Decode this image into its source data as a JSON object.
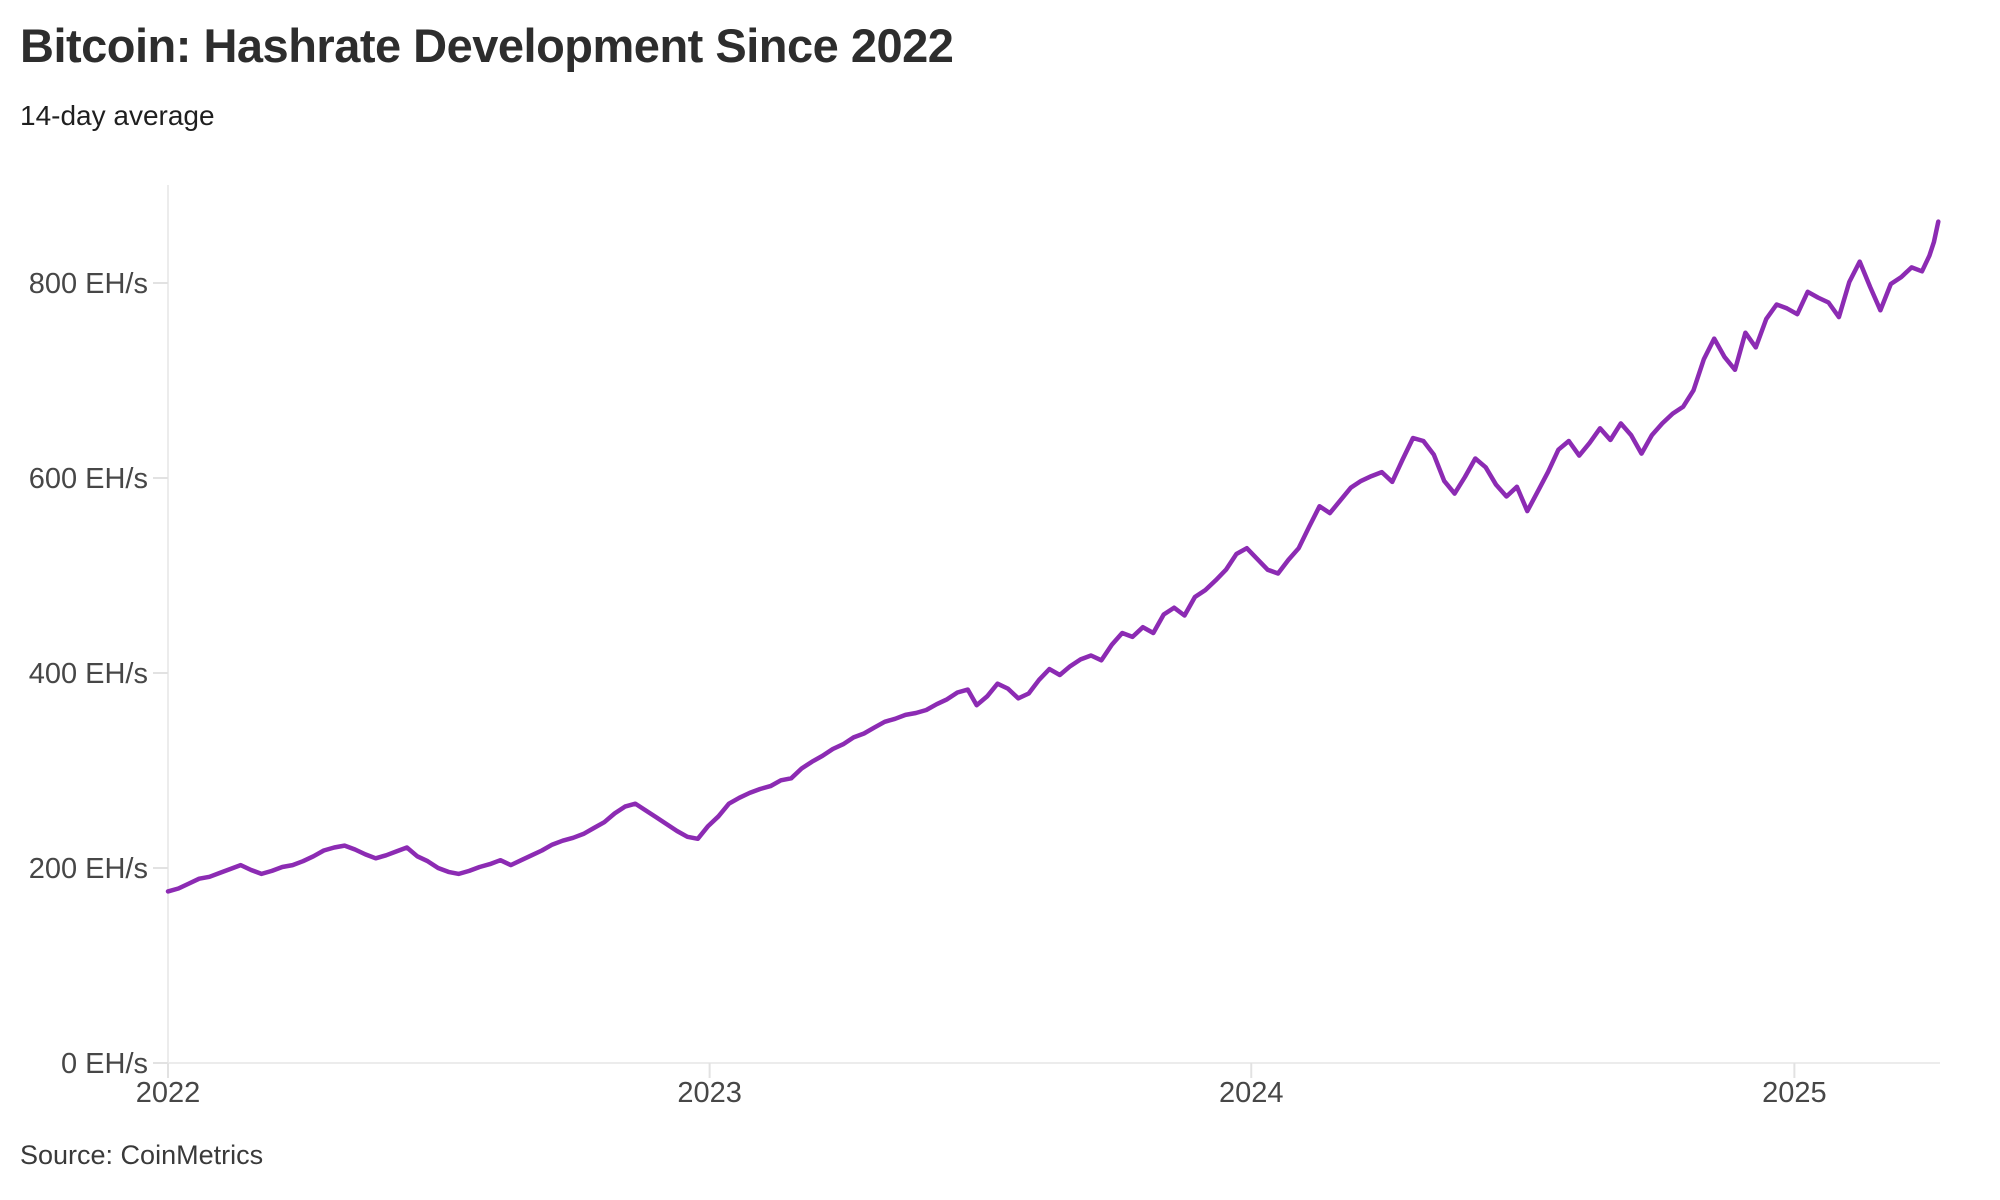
{
  "header": {
    "title": "Bitcoin: Hashrate Development Since 2022",
    "subtitle": "14-day average"
  },
  "footer": {
    "source": "Source: CoinMetrics"
  },
  "chart_data": {
    "type": "line",
    "title": "Bitcoin: Hashrate Development Since 2022",
    "subtitle": "14-day average",
    "source": "Source: CoinMetrics",
    "unit": "EH/s",
    "grid": false,
    "legend": "none",
    "line_color": "#8c2bb3",
    "axis_color": "#ececec",
    "tick_color": "#e2e2e2",
    "label_color": "#474747",
    "ylim": [
      0,
      900
    ],
    "xlim": [
      "2022-01-01",
      "2025-04-20"
    ],
    "y_ticks": [
      {
        "value": 0,
        "label": "0 EH/s"
      },
      {
        "value": 200,
        "label": "200 EH/s"
      },
      {
        "value": 400,
        "label": "400 EH/s"
      },
      {
        "value": 600,
        "label": "600 EH/s"
      },
      {
        "value": 800,
        "label": "800 EH/s"
      }
    ],
    "x_ticks": [
      {
        "date": "2022-01-01",
        "label": "2022"
      },
      {
        "date": "2023-01-01",
        "label": "2023"
      },
      {
        "date": "2024-01-01",
        "label": "2024"
      },
      {
        "date": "2025-01-01",
        "label": "2025"
      }
    ],
    "series": [
      {
        "name": "Bitcoin network hashrate, 14-day average (EH/s)",
        "color": "#8c2bb3",
        "points": [
          [
            "2022-01-01",
            176
          ],
          [
            "2022-01-08",
            179
          ],
          [
            "2022-01-15",
            184
          ],
          [
            "2022-01-22",
            189
          ],
          [
            "2022-01-29",
            191
          ],
          [
            "2022-02-05",
            195
          ],
          [
            "2022-02-12",
            199
          ],
          [
            "2022-02-19",
            203
          ],
          [
            "2022-02-26",
            198
          ],
          [
            "2022-03-05",
            194
          ],
          [
            "2022-03-12",
            197
          ],
          [
            "2022-03-19",
            201
          ],
          [
            "2022-03-26",
            203
          ],
          [
            "2022-04-02",
            207
          ],
          [
            "2022-04-09",
            212
          ],
          [
            "2022-04-16",
            218
          ],
          [
            "2022-04-23",
            221
          ],
          [
            "2022-04-30",
            223
          ],
          [
            "2022-05-07",
            219
          ],
          [
            "2022-05-14",
            214
          ],
          [
            "2022-05-21",
            210
          ],
          [
            "2022-05-28",
            213
          ],
          [
            "2022-06-04",
            217
          ],
          [
            "2022-06-11",
            221
          ],
          [
            "2022-06-18",
            212
          ],
          [
            "2022-06-25",
            207
          ],
          [
            "2022-07-02",
            200
          ],
          [
            "2022-07-09",
            196
          ],
          [
            "2022-07-16",
            194
          ],
          [
            "2022-07-23",
            197
          ],
          [
            "2022-07-30",
            201
          ],
          [
            "2022-08-06",
            204
          ],
          [
            "2022-08-13",
            208
          ],
          [
            "2022-08-20",
            203
          ],
          [
            "2022-08-27",
            208
          ],
          [
            "2022-09-03",
            213
          ],
          [
            "2022-09-10",
            218
          ],
          [
            "2022-09-17",
            224
          ],
          [
            "2022-09-24",
            228
          ],
          [
            "2022-10-01",
            231
          ],
          [
            "2022-10-08",
            235
          ],
          [
            "2022-10-15",
            241
          ],
          [
            "2022-10-22",
            247
          ],
          [
            "2022-10-29",
            256
          ],
          [
            "2022-11-05",
            263
          ],
          [
            "2022-11-12",
            266
          ],
          [
            "2022-11-19",
            259
          ],
          [
            "2022-11-26",
            252
          ],
          [
            "2022-12-03",
            245
          ],
          [
            "2022-12-10",
            238
          ],
          [
            "2022-12-17",
            232
          ],
          [
            "2022-12-24",
            230
          ],
          [
            "2022-12-31",
            243
          ],
          [
            "2023-01-07",
            253
          ],
          [
            "2023-01-14",
            266
          ],
          [
            "2023-01-21",
            272
          ],
          [
            "2023-01-28",
            277
          ],
          [
            "2023-02-04",
            281
          ],
          [
            "2023-02-11",
            284
          ],
          [
            "2023-02-18",
            290
          ],
          [
            "2023-02-25",
            292
          ],
          [
            "2023-03-04",
            302
          ],
          [
            "2023-03-11",
            309
          ],
          [
            "2023-03-18",
            315
          ],
          [
            "2023-03-25",
            322
          ],
          [
            "2023-04-01",
            327
          ],
          [
            "2023-04-08",
            334
          ],
          [
            "2023-04-15",
            338
          ],
          [
            "2023-04-22",
            344
          ],
          [
            "2023-04-29",
            350
          ],
          [
            "2023-05-06",
            353
          ],
          [
            "2023-05-13",
            357
          ],
          [
            "2023-05-20",
            359
          ],
          [
            "2023-05-27",
            362
          ],
          [
            "2023-06-03",
            368
          ],
          [
            "2023-06-10",
            373
          ],
          [
            "2023-06-17",
            380
          ],
          [
            "2023-06-24",
            383
          ],
          [
            "2023-06-30",
            367
          ],
          [
            "2023-07-07",
            376
          ],
          [
            "2023-07-14",
            389
          ],
          [
            "2023-07-21",
            384
          ],
          [
            "2023-07-28",
            374
          ],
          [
            "2023-08-04",
            379
          ],
          [
            "2023-08-11",
            393
          ],
          [
            "2023-08-18",
            404
          ],
          [
            "2023-08-25",
            398
          ],
          [
            "2023-09-01",
            407
          ],
          [
            "2023-09-08",
            414
          ],
          [
            "2023-09-15",
            418
          ],
          [
            "2023-09-22",
            413
          ],
          [
            "2023-09-29",
            429
          ],
          [
            "2023-10-06",
            441
          ],
          [
            "2023-10-13",
            437
          ],
          [
            "2023-10-20",
            447
          ],
          [
            "2023-10-27",
            441
          ],
          [
            "2023-11-03",
            460
          ],
          [
            "2023-11-10",
            467
          ],
          [
            "2023-11-17",
            459
          ],
          [
            "2023-11-24",
            478
          ],
          [
            "2023-12-01",
            485
          ],
          [
            "2023-12-08",
            495
          ],
          [
            "2023-12-15",
            506
          ],
          [
            "2023-12-22",
            522
          ],
          [
            "2023-12-29",
            528
          ],
          [
            "2024-01-05",
            517
          ],
          [
            "2024-01-12",
            506
          ],
          [
            "2024-01-19",
            502
          ],
          [
            "2024-01-26",
            516
          ],
          [
            "2024-02-02",
            528
          ],
          [
            "2024-02-09",
            550
          ],
          [
            "2024-02-16",
            571
          ],
          [
            "2024-02-23",
            564
          ],
          [
            "2024-03-01",
            577
          ],
          [
            "2024-03-08",
            590
          ],
          [
            "2024-03-15",
            597
          ],
          [
            "2024-03-22",
            602
          ],
          [
            "2024-03-29",
            606
          ],
          [
            "2024-04-05",
            596
          ],
          [
            "2024-04-12",
            619
          ],
          [
            "2024-04-19",
            641
          ],
          [
            "2024-04-26",
            638
          ],
          [
            "2024-05-03",
            624
          ],
          [
            "2024-05-10",
            597
          ],
          [
            "2024-05-17",
            584
          ],
          [
            "2024-05-24",
            601
          ],
          [
            "2024-05-31",
            620
          ],
          [
            "2024-06-07",
            611
          ],
          [
            "2024-06-14",
            593
          ],
          [
            "2024-06-21",
            581
          ],
          [
            "2024-06-28",
            591
          ],
          [
            "2024-07-05",
            566
          ],
          [
            "2024-07-12",
            586
          ],
          [
            "2024-07-19",
            606
          ],
          [
            "2024-07-26",
            629
          ],
          [
            "2024-08-02",
            638
          ],
          [
            "2024-08-09",
            623
          ],
          [
            "2024-08-16",
            636
          ],
          [
            "2024-08-23",
            651
          ],
          [
            "2024-08-30",
            639
          ],
          [
            "2024-09-06",
            656
          ],
          [
            "2024-09-13",
            644
          ],
          [
            "2024-09-20",
            625
          ],
          [
            "2024-09-27",
            644
          ],
          [
            "2024-10-04",
            656
          ],
          [
            "2024-10-11",
            666
          ],
          [
            "2024-10-18",
            673
          ],
          [
            "2024-10-25",
            690
          ],
          [
            "2024-11-01",
            722
          ],
          [
            "2024-11-08",
            743
          ],
          [
            "2024-11-15",
            724
          ],
          [
            "2024-11-22",
            711
          ],
          [
            "2024-11-29",
            749
          ],
          [
            "2024-12-06",
            734
          ],
          [
            "2024-12-13",
            763
          ],
          [
            "2024-12-20",
            778
          ],
          [
            "2024-12-27",
            774
          ],
          [
            "2025-01-03",
            768
          ],
          [
            "2025-01-10",
            791
          ],
          [
            "2025-01-17",
            785
          ],
          [
            "2025-01-24",
            780
          ],
          [
            "2025-01-31",
            765
          ],
          [
            "2025-02-07",
            801
          ],
          [
            "2025-02-14",
            822
          ],
          [
            "2025-02-21",
            796
          ],
          [
            "2025-02-28",
            772
          ],
          [
            "2025-03-07",
            799
          ],
          [
            "2025-03-14",
            806
          ],
          [
            "2025-03-21",
            816
          ],
          [
            "2025-03-28",
            812
          ],
          [
            "2025-04-02",
            828
          ],
          [
            "2025-04-05",
            842
          ],
          [
            "2025-04-08",
            863
          ]
        ]
      }
    ]
  }
}
